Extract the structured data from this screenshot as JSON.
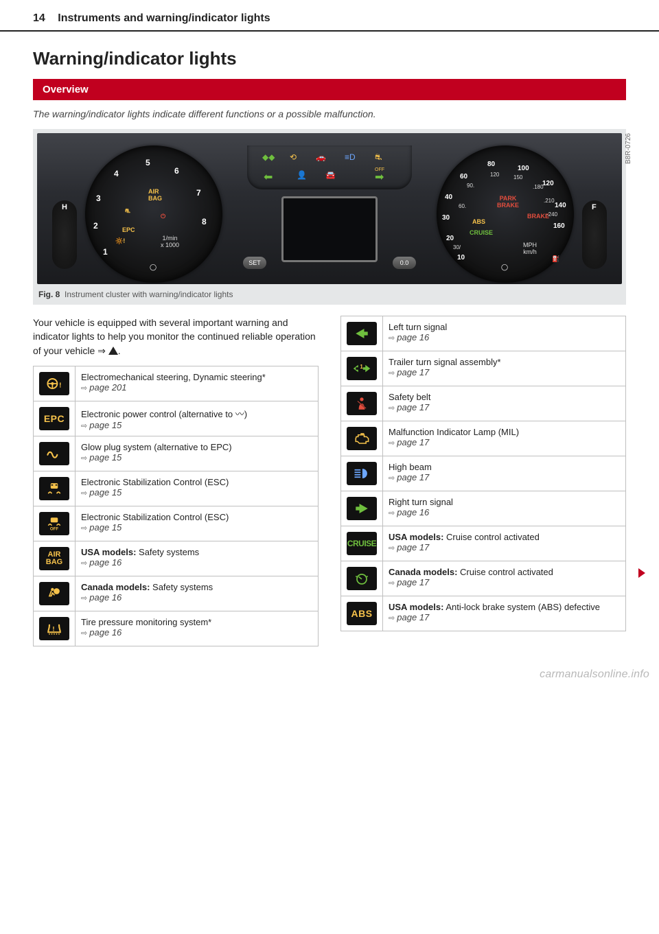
{
  "page": {
    "number": "14",
    "running_head": "Instruments and warning/indicator lights"
  },
  "section_title": "Warning/indicator lights",
  "overview_label": "Overview",
  "intro": "The warning/indicator lights indicate different functions or a possible malfunction.",
  "figure": {
    "ref_code": "B8R-0726",
    "caption_prefix": "Fig. 8",
    "caption": "Instrument cluster with warning/indicator lights",
    "tach": {
      "numbers": [
        "1",
        "2",
        "3",
        "4",
        "5",
        "6",
        "7",
        "8"
      ],
      "labels": {
        "airbag": "AIR\nBAG",
        "epc": "EPC",
        "unit": "1/min\nx 1000"
      }
    },
    "speedo": {
      "mph": [
        "10",
        "20",
        "30",
        "40",
        "60",
        "80",
        "100",
        "120",
        "140",
        "160"
      ],
      "kmh": [
        "30",
        "60",
        "90",
        "120",
        "150",
        "180",
        "210",
        "240"
      ],
      "labels": {
        "park": "PARK\nBRAKE",
        "brake": "BRAKE",
        "abs": "ABS",
        "cruise": "CRUISE",
        "unit": "MPH\nkm/h"
      }
    },
    "buttons": {
      "set": "SET",
      "odo": "0.0"
    },
    "sidegauges": {
      "left_top": "H",
      "right_top": "F"
    }
  },
  "body_text": "Your vehicle is equipped with several important warning and indicator lights to help you monitor the continued reliable operation of your vehicle ⇒ ",
  "body_text_suffix": ".",
  "left_table": [
    {
      "icon": "steering",
      "label": "Electromechanical steering, Dynamic steering*",
      "page": "page 201"
    },
    {
      "icon": "epc",
      "label": "Electronic power control (alternative to 〰)",
      "page": "page 15"
    },
    {
      "icon": "glow",
      "label": "Glow plug system (alternative to EPC)",
      "page": "page 15"
    },
    {
      "icon": "esc",
      "label": "Electronic Stabilization Control (ESC)",
      "page": "page 15"
    },
    {
      "icon": "escoff",
      "label": "Electronic Stabilization Control (ESC)",
      "page": "page 15"
    },
    {
      "icon": "airbag",
      "bold": "USA models:",
      "label": " Safety systems",
      "page": "page 16"
    },
    {
      "icon": "airbag_person",
      "bold": "Canada models:",
      "label": " Safety systems",
      "page": "page 16"
    },
    {
      "icon": "tpms",
      "label": "Tire pressure monitoring system*",
      "page": "page 16"
    }
  ],
  "right_table": [
    {
      "icon": "left_turn",
      "label": "Left turn signal",
      "page": "page 16"
    },
    {
      "icon": "trailer_turn",
      "label": "Trailer turn signal assembly*",
      "page": "page 17"
    },
    {
      "icon": "seatbelt",
      "label": "Safety belt",
      "page": "page 17"
    },
    {
      "icon": "mil",
      "label": "Malfunction Indicator Lamp (MIL)",
      "page": "page 17"
    },
    {
      "icon": "highbeam",
      "label": "High beam",
      "page": "page 17"
    },
    {
      "icon": "right_turn",
      "label": "Right turn signal",
      "page": "page 16"
    },
    {
      "icon": "cruise_usa",
      "bold": "USA models:",
      "label": " Cruise control activated",
      "page": "page 17"
    },
    {
      "icon": "cruise_can",
      "bold": "Canada models:",
      "label": " Cruise control activated",
      "page": "page 17"
    },
    {
      "icon": "abs",
      "bold": "USA models:",
      "label": " Anti-lock brake system (ABS) defective",
      "page": "page 17"
    }
  ],
  "watermark": "carmanualsonline.info",
  "colors": {
    "header_red": "#c1001f",
    "amber": "#f6c24b",
    "green": "#6fbf3e",
    "blue": "#6da7ff",
    "red": "#e34d3d"
  }
}
